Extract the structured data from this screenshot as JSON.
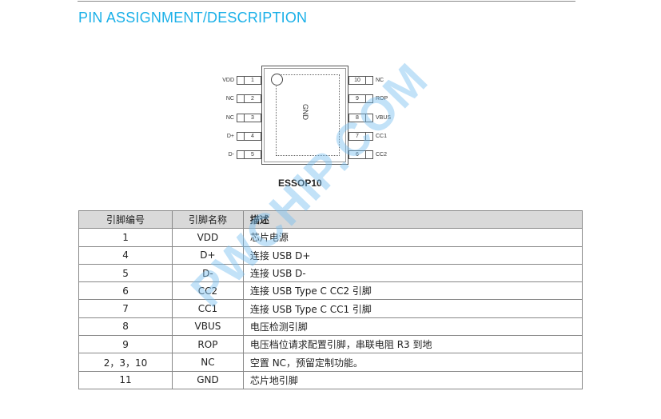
{
  "section_title": "PIN ASSIGNMENT/DESCRIPTION",
  "diagram": {
    "center_label": "GND",
    "package": "ESSOP10",
    "left_pins": [
      {
        "num": "1",
        "name": "VDD"
      },
      {
        "num": "2",
        "name": "NC"
      },
      {
        "num": "3",
        "name": "NC"
      },
      {
        "num": "4",
        "name": "D+"
      },
      {
        "num": "5",
        "name": "D-"
      }
    ],
    "right_pins": [
      {
        "num": "10",
        "name": "NC"
      },
      {
        "num": "9",
        "name": "ROP"
      },
      {
        "num": "8",
        "name": "VBUS"
      },
      {
        "num": "7",
        "name": "CC1"
      },
      {
        "num": "6",
        "name": "CC2"
      }
    ]
  },
  "table": {
    "headers": [
      "引脚编号",
      "引脚名称",
      "描述"
    ],
    "rows": [
      [
        "1",
        "VDD",
        "芯片电源"
      ],
      [
        "4",
        "D+",
        "连接 USB D+"
      ],
      [
        "5",
        "D-",
        "连接 USB D-"
      ],
      [
        "6",
        "CC2",
        "连接 USB Type C CC2  引脚"
      ],
      [
        "7",
        "CC1",
        "连接 USB Type C CC1  引脚"
      ],
      [
        "8",
        "VBUS",
        "电压检测引脚"
      ],
      [
        "9",
        "ROP",
        "电压档位请求配置引脚，串联电阻 R3 到地"
      ],
      [
        "2，3，10",
        "NC",
        "空置 NC，预留定制功能。"
      ],
      [
        "11",
        "GND",
        "芯片地引脚"
      ]
    ]
  },
  "watermark": "PWCHIP.COM",
  "colors": {
    "title": "#1ab0e8",
    "header_bg": "#d9d9d9"
  }
}
